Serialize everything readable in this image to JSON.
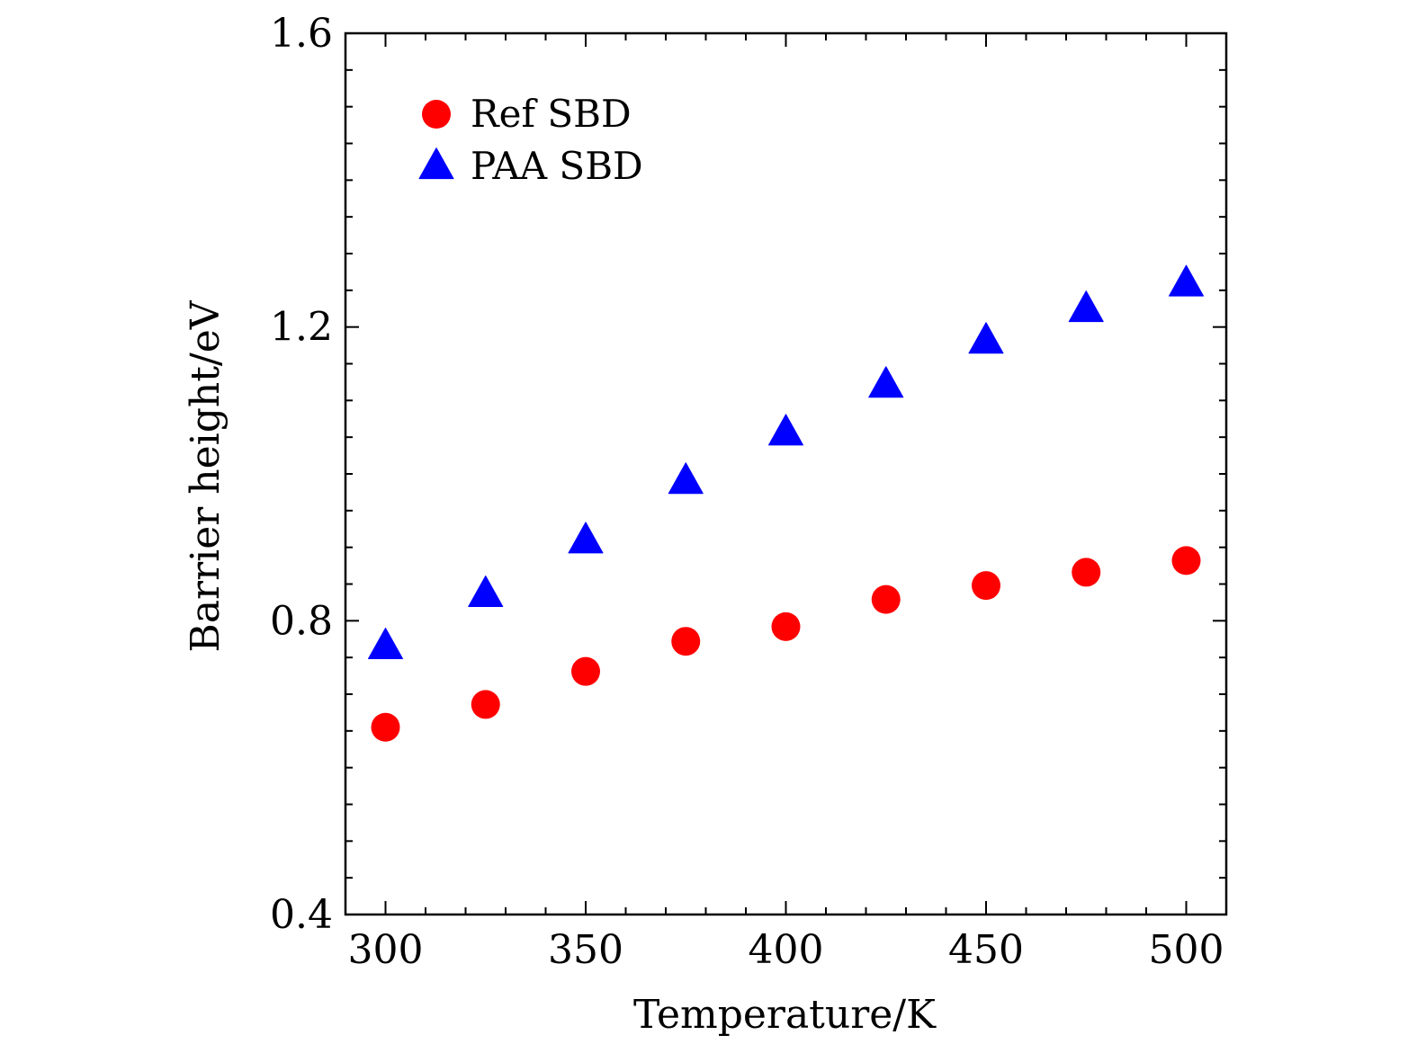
{
  "chart_data": {
    "type": "scatter",
    "xlabel": "Temperature/K",
    "ylabel": "Barrier height/eV",
    "xlim": [
      290,
      510
    ],
    "ylim": [
      0.4,
      1.6
    ],
    "x_ticks": [
      300,
      350,
      400,
      450,
      500
    ],
    "x_tick_labels": [
      "300",
      "350",
      "400",
      "450",
      "500"
    ],
    "x_minor_ticks": [
      310,
      320,
      330,
      340,
      360,
      370,
      380,
      390,
      410,
      420,
      430,
      440,
      460,
      470,
      480,
      490
    ],
    "y_ticks": [
      0.4,
      0.8,
      1.2,
      1.6
    ],
    "y_tick_labels": [
      "0.4",
      "0.8",
      "1.2",
      "1.6"
    ],
    "y_minor_ticks": [
      0.45,
      0.5,
      0.55,
      0.6,
      0.65,
      0.7,
      0.75,
      0.85,
      0.9,
      0.95,
      1.0,
      1.05,
      1.1,
      1.15,
      1.25,
      1.3,
      1.35,
      1.4,
      1.45,
      1.5,
      1.55
    ],
    "grid": false,
    "legend_position": "top-left",
    "series": [
      {
        "name": "Ref SBD",
        "marker": "circle",
        "color": "#ff0000",
        "x": [
          300,
          325,
          350,
          375,
          400,
          425,
          450,
          475,
          500
        ],
        "y": [
          0.655,
          0.686,
          0.731,
          0.772,
          0.792,
          0.829,
          0.848,
          0.866,
          0.882
        ]
      },
      {
        "name": "PAA SBD",
        "marker": "triangle",
        "color": "#0000ff",
        "x": [
          300,
          325,
          350,
          375,
          400,
          425,
          450,
          475,
          500
        ],
        "y": [
          0.765,
          0.836,
          0.909,
          0.99,
          1.056,
          1.121,
          1.181,
          1.224,
          1.259
        ]
      }
    ]
  }
}
